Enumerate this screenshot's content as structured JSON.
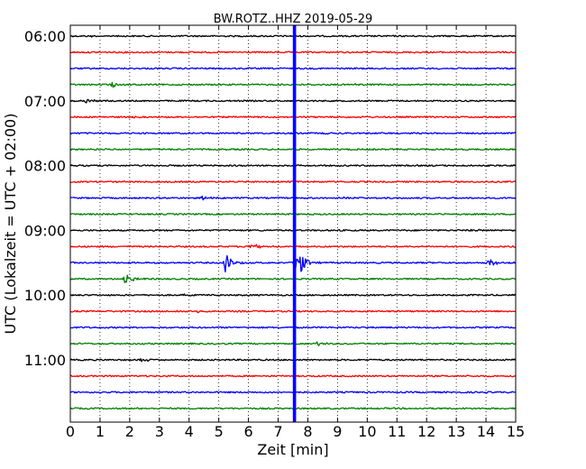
{
  "chart_data": {
    "type": "line",
    "title": "BW.ROTZ..HHZ 2019-05-29",
    "xlabel": "Zeit  [min]",
    "ylabel": "UTC (Lokalzeit = UTC + 02:00)",
    "xlim": [
      0,
      15
    ],
    "x_ticks": [
      "0",
      "1",
      "2",
      "3",
      "4",
      "5",
      "6",
      "7",
      "8",
      "9",
      "10",
      "11",
      "12",
      "13",
      "14",
      "15"
    ],
    "y_tick_labels": [
      "06:00",
      "07:00",
      "08:00",
      "09:00",
      "10:00",
      "11:00"
    ],
    "grid": true,
    "trace_interval_min": 15,
    "trace_colors": [
      "#000000",
      "#ff0000",
      "#0000ff",
      "#008000"
    ],
    "traces": [
      {
        "start": "06:00",
        "events": [
          {
            "t": 0.7,
            "amp": 0.08
          }
        ]
      },
      {
        "start": "06:15",
        "events": []
      },
      {
        "start": "06:30",
        "events": []
      },
      {
        "start": "06:45",
        "events": [
          {
            "t": 1.4,
            "amp": 0.35
          },
          {
            "t": 9.6,
            "amp": 0.08
          }
        ]
      },
      {
        "start": "07:00",
        "events": [
          {
            "t": 0.5,
            "amp": 0.25
          }
        ]
      },
      {
        "start": "07:15",
        "events": [
          {
            "t": 2.0,
            "amp": 0.08
          }
        ]
      },
      {
        "start": "07:30",
        "events": [
          {
            "t": 8.6,
            "amp": 0.08
          }
        ]
      },
      {
        "start": "07:45",
        "events": [
          {
            "t": 1.0,
            "amp": 0.1
          }
        ]
      },
      {
        "start": "08:00",
        "events": [
          {
            "t": 4.8,
            "amp": 0.08
          }
        ]
      },
      {
        "start": "08:15",
        "events": [
          {
            "t": 6.7,
            "amp": 0.08
          }
        ]
      },
      {
        "start": "08:30",
        "events": [
          {
            "t": 4.4,
            "amp": 0.25
          },
          {
            "t": 9.2,
            "amp": 0.1
          }
        ]
      },
      {
        "start": "08:45",
        "events": [
          {
            "t": 12.2,
            "amp": 0.1
          }
        ]
      },
      {
        "start": "09:00",
        "events": [
          {
            "t": 13.5,
            "amp": 0.15
          }
        ]
      },
      {
        "start": "09:15",
        "events": [
          {
            "t": 6.0,
            "amp": 0.35
          },
          {
            "t": 6.3,
            "amp": 0.2
          }
        ]
      },
      {
        "start": "09:30",
        "events": [
          {
            "t": 5.2,
            "amp": 1.4
          },
          {
            "t": 7.6,
            "amp": 2.6
          },
          {
            "t": 14.1,
            "amp": 0.6
          }
        ]
      },
      {
        "start": "09:45",
        "events": [
          {
            "t": 1.8,
            "amp": 0.9
          }
        ]
      },
      {
        "start": "10:00",
        "events": [
          {
            "t": 3.8,
            "amp": 0.08
          }
        ]
      },
      {
        "start": "10:15",
        "events": [
          {
            "t": 4.3,
            "amp": 0.2
          },
          {
            "t": 3.6,
            "amp": 0.1
          }
        ]
      },
      {
        "start": "10:30",
        "events": []
      },
      {
        "start": "10:45",
        "events": [
          {
            "t": 8.3,
            "amp": 0.3
          }
        ]
      },
      {
        "start": "11:00",
        "events": [
          {
            "t": 2.4,
            "amp": 0.25
          }
        ]
      },
      {
        "start": "11:15",
        "events": []
      },
      {
        "start": "11:30",
        "events": []
      },
      {
        "start": "11:45",
        "events": []
      }
    ],
    "spike": {
      "t": 7.55,
      "color": "#0000ff"
    }
  }
}
